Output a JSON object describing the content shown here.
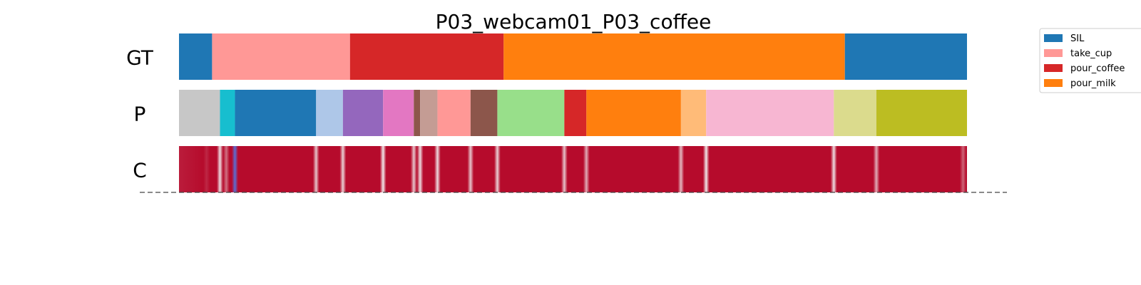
{
  "chart_data": {
    "type": "segmentation-timeline",
    "title": "P03_webcam01_P03_coffee",
    "x_range": [
      0,
      1
    ],
    "rows": [
      {
        "label": "GT",
        "kind": "segments",
        "segments": [
          {
            "start": 0.0,
            "end": 0.042,
            "color": "#1f77b4"
          },
          {
            "start": 0.042,
            "end": 0.217,
            "color": "#ff9896"
          },
          {
            "start": 0.217,
            "end": 0.412,
            "color": "#d62728"
          },
          {
            "start": 0.412,
            "end": 0.845,
            "color": "#ff7f0e"
          },
          {
            "start": 0.845,
            "end": 1.0,
            "color": "#1f77b4"
          }
        ]
      },
      {
        "label": "P",
        "kind": "segments",
        "segments": [
          {
            "start": 0.0,
            "end": 0.052,
            "color": "#c7c7c7"
          },
          {
            "start": 0.052,
            "end": 0.071,
            "color": "#17becf"
          },
          {
            "start": 0.071,
            "end": 0.174,
            "color": "#1f77b4"
          },
          {
            "start": 0.174,
            "end": 0.208,
            "color": "#aec7e8"
          },
          {
            "start": 0.208,
            "end": 0.259,
            "color": "#9467bd"
          },
          {
            "start": 0.259,
            "end": 0.298,
            "color": "#e377c2"
          },
          {
            "start": 0.298,
            "end": 0.306,
            "color": "#8c564b"
          },
          {
            "start": 0.306,
            "end": 0.328,
            "color": "#c49c94"
          },
          {
            "start": 0.328,
            "end": 0.37,
            "color": "#ff9896"
          },
          {
            "start": 0.37,
            "end": 0.404,
            "color": "#8c564b"
          },
          {
            "start": 0.404,
            "end": 0.489,
            "color": "#98df8a"
          },
          {
            "start": 0.489,
            "end": 0.517,
            "color": "#d62728"
          },
          {
            "start": 0.517,
            "end": 0.637,
            "color": "#ff7f0e"
          },
          {
            "start": 0.637,
            "end": 0.669,
            "color": "#ffbb78"
          },
          {
            "start": 0.669,
            "end": 0.831,
            "color": "#f7b6d2"
          },
          {
            "start": 0.831,
            "end": 0.885,
            "color": "#dbdb8d"
          },
          {
            "start": 0.885,
            "end": 1.0,
            "color": "#bcbd22"
          }
        ]
      },
      {
        "label": "C",
        "kind": "confidence",
        "base_color": "#b40426",
        "dips": [
          {
            "at": 0.035,
            "value": 0.85
          },
          {
            "at": 0.052,
            "value": 0.1
          },
          {
            "at": 0.06,
            "value": 0.55
          },
          {
            "at": 0.071,
            "value": 0.0
          },
          {
            "at": 0.174,
            "value": 0.2
          },
          {
            "at": 0.208,
            "value": 0.15
          },
          {
            "at": 0.259,
            "value": 0.05
          },
          {
            "at": 0.298,
            "value": 0.2
          },
          {
            "at": 0.306,
            "value": 0.1
          },
          {
            "at": 0.328,
            "value": 0.1
          },
          {
            "at": 0.37,
            "value": 0.2
          },
          {
            "at": 0.404,
            "value": 0.15
          },
          {
            "at": 0.489,
            "value": 0.2
          },
          {
            "at": 0.517,
            "value": 0.3
          },
          {
            "at": 0.637,
            "value": 0.25
          },
          {
            "at": 0.669,
            "value": 0.05
          },
          {
            "at": 0.831,
            "value": 0.1
          },
          {
            "at": 0.885,
            "value": 0.3
          },
          {
            "at": 0.995,
            "value": 0.6
          }
        ]
      }
    ],
    "legend": {
      "placement": "top-right",
      "entries": [
        {
          "label": "SIL",
          "color": "#1f77b4"
        },
        {
          "label": "take_cup",
          "color": "#ff9896"
        },
        {
          "label": "pour_coffee",
          "color": "#d62728"
        },
        {
          "label": "pour_milk",
          "color": "#ff7f0e"
        }
      ]
    }
  }
}
